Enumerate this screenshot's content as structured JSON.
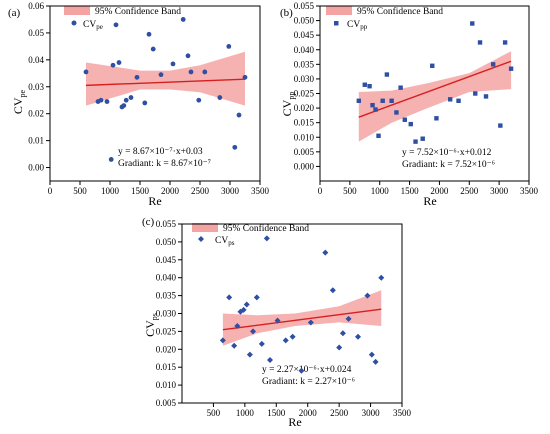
{
  "figure": {
    "panels": [
      {
        "panel_label": "(a)",
        "legend_band": "95% Confidence Band",
        "legend_series_main": "CV",
        "legend_series_sub": "pe",
        "ylabel_main": "CV",
        "ylabel_sub": "pe",
        "xlabel": "Re",
        "eq_line1": "y = 8.67×10⁻⁷·x+0.03",
        "eq_line2": "Gradiant: k = 8.67×10⁻⁷"
      },
      {
        "panel_label": "(b)",
        "legend_band": "95% Confidence Band",
        "legend_series_main": "CV",
        "legend_series_sub": "pp",
        "ylabel_main": "CV",
        "ylabel_sub": "pp",
        "xlabel": "Re",
        "eq_line1": "y = 7.52×10⁻⁶·x+0.012",
        "eq_line2": "Gradiant: k = 7.52×10⁻⁶"
      },
      {
        "panel_label": "(c)",
        "legend_band": "95% Confidence Band",
        "legend_series_main": "CV",
        "legend_series_sub": "ps",
        "ylabel_main": "CV",
        "ylabel_sub": "ps",
        "xlabel": "Re",
        "eq_line1": "y = 2.27×10⁻⁶·x+0.024",
        "eq_line2": "Gradiant: k = 2.27×10⁻⁶"
      }
    ]
  },
  "chart_data": [
    {
      "type": "scatter",
      "xlabel": "Re",
      "ylabel": "CVpe",
      "xlim": [
        0,
        3500
      ],
      "ylim": [
        -0.005,
        0.06
      ],
      "xticks": [
        0,
        500,
        1000,
        1500,
        2000,
        2500,
        3000,
        3500
      ],
      "yticks": [
        0.0,
        0.01,
        0.02,
        0.03,
        0.04,
        0.05,
        0.06
      ],
      "ytick_labels": [
        "0.00",
        "0.01",
        "0.02",
        "0.03",
        "0.04",
        "0.05",
        "0.06"
      ],
      "marker": "circle",
      "marker_color": "#2e4fa3",
      "band_color": "#f4a3a3",
      "fit_color": "#d62020",
      "series": [
        {
          "name": "CVpe",
          "points": [
            [
              600,
              0.0355
            ],
            [
              800,
              0.0245
            ],
            [
              850,
              0.025
            ],
            [
              950,
              0.0245
            ],
            [
              1020,
              0.003
            ],
            [
              1050,
              0.038
            ],
            [
              1100,
              0.053
            ],
            [
              1150,
              0.039
            ],
            [
              1200,
              0.0225
            ],
            [
              1230,
              0.023
            ],
            [
              1270,
              0.025
            ],
            [
              1350,
              0.026
            ],
            [
              1450,
              0.0335
            ],
            [
              1580,
              0.024
            ],
            [
              1650,
              0.0495
            ],
            [
              1720,
              0.044
            ],
            [
              1850,
              0.0345
            ],
            [
              2050,
              0.0385
            ],
            [
              2220,
              0.055
            ],
            [
              2300,
              0.0415
            ],
            [
              2350,
              0.0355
            ],
            [
              2480,
              0.025
            ],
            [
              2580,
              0.0355
            ],
            [
              2830,
              0.026
            ],
            [
              2980,
              0.045
            ],
            [
              3080,
              0.0075
            ],
            [
              3150,
              0.0195
            ],
            [
              3250,
              0.0335
            ]
          ]
        }
      ],
      "fit": {
        "slope": 8.67e-07,
        "intercept": 0.03,
        "x_range": [
          600,
          3250
        ]
      },
      "band": {
        "upper": [
          [
            600,
            0.039
          ],
          [
            1500,
            0.036
          ],
          [
            2000,
            0.036
          ],
          [
            2500,
            0.038
          ],
          [
            3250,
            0.043
          ]
        ],
        "lower": [
          [
            600,
            0.023
          ],
          [
            1500,
            0.029
          ],
          [
            2000,
            0.029
          ],
          [
            2500,
            0.028
          ],
          [
            3250,
            0.023
          ]
        ]
      }
    },
    {
      "type": "scatter",
      "xlabel": "Re",
      "ylabel": "CVpp",
      "xlim": [
        0,
        3500
      ],
      "ylim": [
        -0.005,
        0.055
      ],
      "xticks": [
        0,
        500,
        1000,
        1500,
        2000,
        2500,
        3000,
        3500
      ],
      "yticks": [
        0.0,
        0.005,
        0.01,
        0.015,
        0.02,
        0.025,
        0.03,
        0.035,
        0.04,
        0.045,
        0.05,
        0.055
      ],
      "ytick_labels": [
        "0.000",
        "0.005",
        "0.010",
        "0.015",
        "0.020",
        "0.025",
        "0.030",
        "0.035",
        "0.040",
        "0.045",
        "0.050",
        "0.055"
      ],
      "marker": "square",
      "marker_color": "#2e4fa3",
      "band_color": "#f4a3a3",
      "fit_color": "#d62020",
      "series": [
        {
          "name": "CVpp",
          "points": [
            [
              650,
              0.0225
            ],
            [
              750,
              0.028
            ],
            [
              830,
              0.0275
            ],
            [
              880,
              0.021
            ],
            [
              930,
              0.0195
            ],
            [
              980,
              0.0105
            ],
            [
              1050,
              0.0225
            ],
            [
              1120,
              0.0315
            ],
            [
              1200,
              0.0225
            ],
            [
              1280,
              0.0185
            ],
            [
              1350,
              0.027
            ],
            [
              1420,
              0.016
            ],
            [
              1520,
              0.0145
            ],
            [
              1600,
              0.0085
            ],
            [
              1720,
              0.0095
            ],
            [
              1880,
              0.0345
            ],
            [
              1950,
              0.0165
            ],
            [
              2180,
              0.023
            ],
            [
              2320,
              0.0225
            ],
            [
              2550,
              0.049
            ],
            [
              2600,
              0.025
            ],
            [
              2680,
              0.0425
            ],
            [
              2780,
              0.024
            ],
            [
              2900,
              0.035
            ],
            [
              3020,
              0.014
            ],
            [
              3100,
              0.0425
            ],
            [
              3200,
              0.0335
            ]
          ]
        }
      ],
      "fit": {
        "slope": 7.52e-06,
        "intercept": 0.012,
        "x_range": [
          650,
          3200
        ]
      },
      "band": {
        "upper": [
          [
            650,
            0.0255
          ],
          [
            1200,
            0.026
          ],
          [
            1800,
            0.0285
          ],
          [
            2500,
            0.032
          ],
          [
            3200,
            0.0395
          ]
        ],
        "lower": [
          [
            650,
            0.0085
          ],
          [
            1200,
            0.015
          ],
          [
            1800,
            0.02
          ],
          [
            2500,
            0.0255
          ],
          [
            3200,
            0.0265
          ]
        ]
      }
    },
    {
      "type": "scatter",
      "xlabel": "Re",
      "ylabel": "CVps",
      "xlim": [
        0,
        3500
      ],
      "ylim": [
        0.005,
        0.055
      ],
      "xticks": [
        500,
        1000,
        1500,
        2000,
        2500,
        3000,
        3500
      ],
      "yticks": [
        0.005,
        0.01,
        0.015,
        0.02,
        0.025,
        0.03,
        0.035,
        0.04,
        0.045,
        0.05,
        0.055
      ],
      "ytick_labels": [
        "0.005",
        "0.010",
        "0.015",
        "0.020",
        "0.025",
        "0.030",
        "0.035",
        "0.040",
        "0.045",
        "0.050",
        "0.055"
      ],
      "marker": "diamond",
      "marker_color": "#2e4fa3",
      "band_color": "#f4a3a3",
      "fit_color": "#d62020",
      "series": [
        {
          "name": "CVps",
          "points": [
            [
              650,
              0.0225
            ],
            [
              750,
              0.0345
            ],
            [
              830,
              0.021
            ],
            [
              880,
              0.0265
            ],
            [
              930,
              0.0305
            ],
            [
              980,
              0.031
            ],
            [
              1030,
              0.0325
            ],
            [
              1080,
              0.0185
            ],
            [
              1130,
              0.025
            ],
            [
              1190,
              0.0345
            ],
            [
              1270,
              0.0215
            ],
            [
              1350,
              0.051
            ],
            [
              1400,
              0.017
            ],
            [
              1520,
              0.028
            ],
            [
              1650,
              0.0225
            ],
            [
              1760,
              0.0235
            ],
            [
              1900,
              0.014
            ],
            [
              2050,
              0.0275
            ],
            [
              2280,
              0.047
            ],
            [
              2400,
              0.0365
            ],
            [
              2500,
              0.0205
            ],
            [
              2560,
              0.0245
            ],
            [
              2650,
              0.0285
            ],
            [
              2800,
              0.0235
            ],
            [
              2950,
              0.035
            ],
            [
              3020,
              0.0185
            ],
            [
              3080,
              0.0165
            ],
            [
              3170,
              0.04
            ]
          ]
        }
      ],
      "fit": {
        "slope": 2.27e-06,
        "intercept": 0.024,
        "x_range": [
          650,
          3170
        ]
      },
      "band": {
        "upper": [
          [
            650,
            0.03
          ],
          [
            1200,
            0.0295
          ],
          [
            1800,
            0.03
          ],
          [
            2500,
            0.032
          ],
          [
            3170,
            0.0365
          ]
        ],
        "lower": [
          [
            650,
            0.021
          ],
          [
            1200,
            0.0245
          ],
          [
            1800,
            0.0265
          ],
          [
            2500,
            0.0275
          ],
          [
            3170,
            0.0265
          ]
        ]
      }
    }
  ]
}
